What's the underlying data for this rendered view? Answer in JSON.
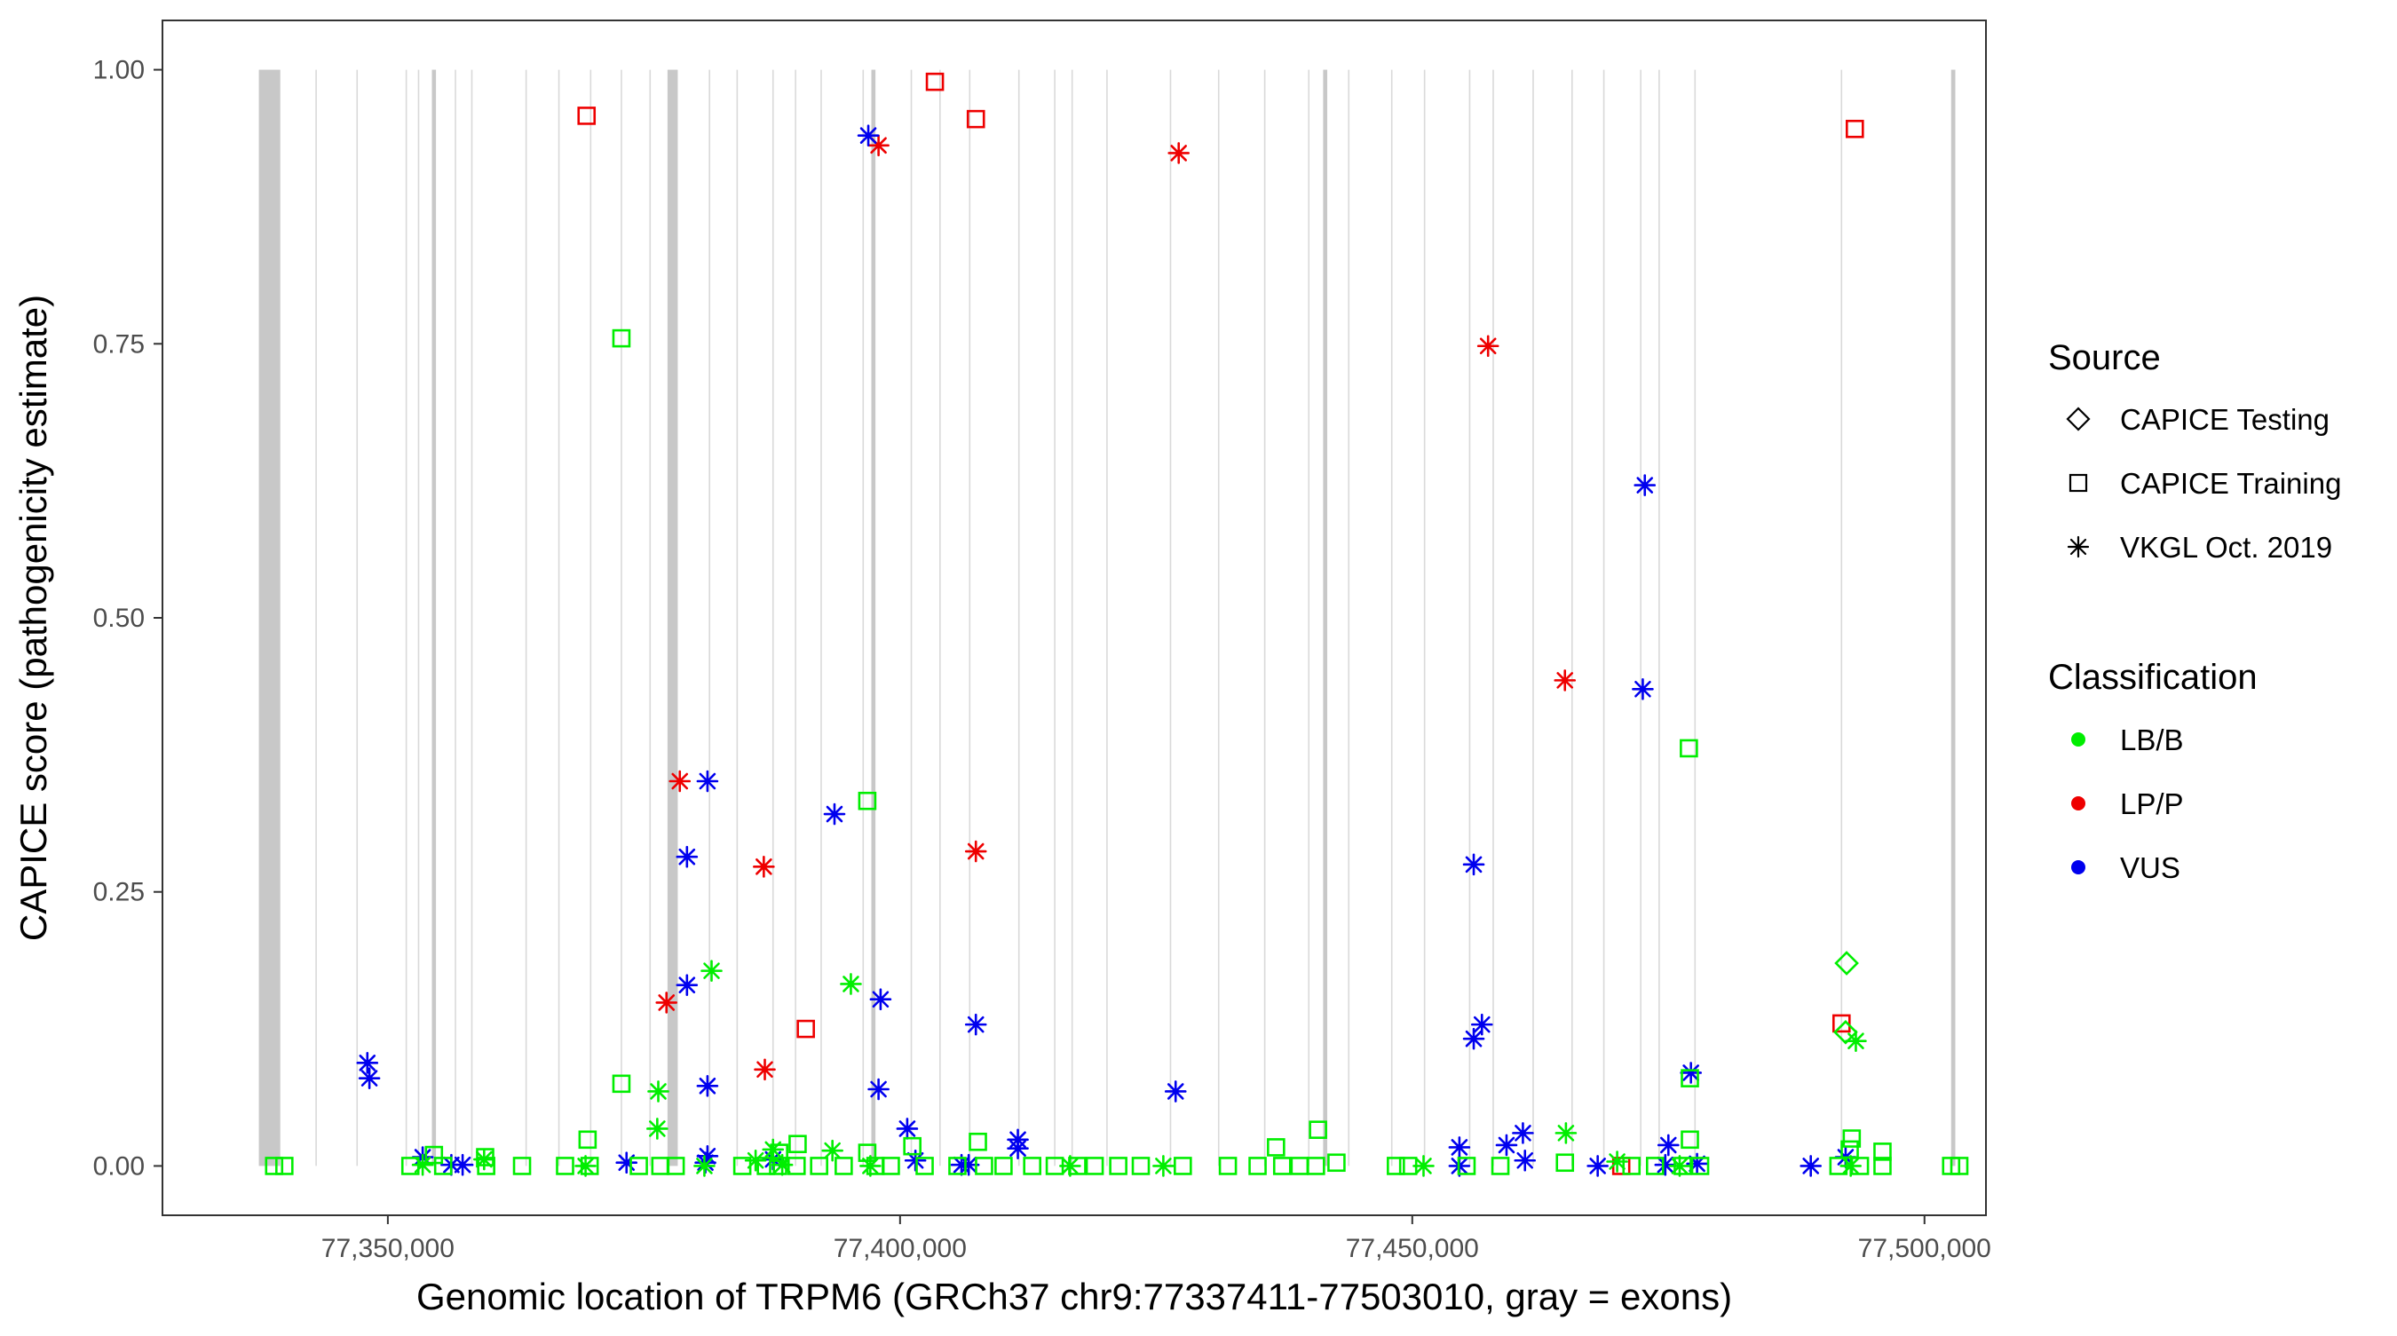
{
  "chart_data": {
    "type": "scatter",
    "title": "",
    "xlabel": "Genomic location of TRPM6 (GRCh37 chr9:77337411-77503010, gray = exons)",
    "ylabel": "CAPICE score (pathogenicity estimate)",
    "xlim": [
      77328000,
      77506000
    ],
    "ylim": [
      -0.045,
      1.045
    ],
    "x_ticks": [
      {
        "value": 77350000,
        "label": "77,350,000"
      },
      {
        "value": 77400000,
        "label": "77,400,000"
      },
      {
        "value": 77450000,
        "label": "77,450,000"
      },
      {
        "value": 77500000,
        "label": "77,500,000"
      }
    ],
    "y_ticks": [
      {
        "value": 0,
        "label": "0.00"
      },
      {
        "value": 0.25,
        "label": "0.25"
      },
      {
        "value": 0.5,
        "label": "0.50"
      },
      {
        "value": 0.75,
        "label": "0.75"
      },
      {
        "value": 1,
        "label": "1.00"
      }
    ],
    "grid": false,
    "legend_position": "right",
    "colors": {
      "LB/B": "#00ee00",
      "LP/P": "#ee0000",
      "VUS": "#0000ee",
      "exon": "#c8c8c8",
      "exon_line": "#d9d9d9"
    },
    "exons": [
      [
        77337411,
        77339500
      ],
      [
        77354300,
        77354700
      ],
      [
        77377300,
        77378300
      ],
      [
        77397200,
        77397600
      ],
      [
        77441300,
        77441700
      ],
      [
        77502600,
        77503010
      ]
    ],
    "exon_lines": [
      77343000,
      77347000,
      77351800,
      77353000,
      77356600,
      77358200,
      77363500,
      77366700,
      77369800,
      77372800,
      77375600,
      77381400,
      77384100,
      77387600,
      77389800,
      77392300,
      77396400,
      77401100,
      77403900,
      77406800,
      77411600,
      77415100,
      77416800,
      77420200,
      77426400,
      77431100,
      77435600,
      77439900,
      77443800,
      77448000,
      77451200,
      77455600,
      77457900,
      77461800,
      77465600,
      77468700,
      77472300,
      77474100,
      77477600,
      77491900
    ],
    "legend_source": {
      "title": "Source",
      "items": [
        {
          "label": "CAPICE Testing",
          "shape": "diamond"
        },
        {
          "label": "CAPICE Training",
          "shape": "square"
        },
        {
          "label": "VKGL Oct. 2019",
          "shape": "asterisk"
        }
      ]
    },
    "legend_classification": {
      "title": "Classification",
      "items": [
        {
          "label": "LB/B",
          "color": "#00ee00"
        },
        {
          "label": "LP/P",
          "color": "#ee0000"
        },
        {
          "label": "VUS",
          "color": "#0000ee"
        }
      ]
    },
    "series": [
      {
        "source": "CAPICE Training",
        "classification": "LP/P",
        "shape": "square",
        "points": [
          [
            77369400,
            0.958
          ],
          [
            77403400,
            0.989
          ],
          [
            77407400,
            0.955
          ],
          [
            77390800,
            0.125
          ],
          [
            77493200,
            0.946
          ],
          [
            77491900,
            0.13
          ],
          [
            77470400,
            0.0
          ]
        ]
      },
      {
        "source": "VKGL Oct. 2019",
        "classification": "LP/P",
        "shape": "asterisk",
        "points": [
          [
            77397900,
            0.931
          ],
          [
            77427200,
            0.924
          ],
          [
            77457400,
            0.748
          ],
          [
            77464900,
            0.443
          ],
          [
            77378500,
            0.351
          ],
          [
            77407400,
            0.287
          ],
          [
            77386700,
            0.273
          ],
          [
            77377200,
            0.149
          ],
          [
            77386800,
            0.088
          ]
        ]
      },
      {
        "source": "VKGL Oct. 2019",
        "classification": "VUS",
        "shape": "asterisk",
        "points": [
          [
            77396900,
            0.94
          ],
          [
            77472700,
            0.621
          ],
          [
            77472500,
            0.435
          ],
          [
            77381200,
            0.351
          ],
          [
            77393600,
            0.321
          ],
          [
            77379200,
            0.282
          ],
          [
            77456000,
            0.275
          ],
          [
            77407400,
            0.129
          ],
          [
            77456800,
            0.129
          ],
          [
            77456000,
            0.116
          ],
          [
            77379200,
            0.165
          ],
          [
            77398100,
            0.152
          ],
          [
            77348000,
            0.094
          ],
          [
            77348200,
            0.08
          ],
          [
            77381200,
            0.073
          ],
          [
            77426900,
            0.068
          ],
          [
            77397900,
            0.07
          ],
          [
            77477200,
            0.085
          ],
          [
            77400700,
            0.034
          ],
          [
            77411500,
            0.024
          ],
          [
            77411500,
            0.016
          ],
          [
            77454600,
            0.017
          ],
          [
            77460800,
            0.03
          ],
          [
            77459200,
            0.019
          ],
          [
            77461000,
            0.005
          ],
          [
            77475000,
            0.019
          ],
          [
            77381200,
            0.009
          ],
          [
            77381000,
            0.003
          ],
          [
            77373300,
            0.003
          ],
          [
            77353400,
            0.008
          ],
          [
            77356200,
            0.001
          ],
          [
            77357300,
            0.001
          ],
          [
            77387600,
            0.006
          ],
          [
            77406000,
            0.001
          ],
          [
            77406700,
            0.001
          ],
          [
            77401500,
            0.005
          ],
          [
            77454600,
            0.0
          ],
          [
            77468100,
            0.0
          ],
          [
            77474700,
            0.001
          ],
          [
            77477800,
            0.002
          ],
          [
            77488900,
            0.0
          ],
          [
            77492300,
            0.008
          ]
        ]
      },
      {
        "source": "VKGL Oct. 2019",
        "classification": "LB/B",
        "shape": "asterisk",
        "points": [
          [
            77381600,
            0.178
          ],
          [
            77395200,
            0.166
          ],
          [
            77376400,
            0.068
          ],
          [
            77376300,
            0.034
          ],
          [
            77387600,
            0.015
          ],
          [
            77393400,
            0.014
          ],
          [
            77465000,
            0.03
          ],
          [
            77493300,
            0.114
          ],
          [
            77353400,
            0.001
          ],
          [
            77359400,
            0.006
          ],
          [
            77369300,
            0.0
          ],
          [
            77380900,
            0.0
          ],
          [
            77385900,
            0.005
          ],
          [
            77388500,
            0.001
          ],
          [
            77397100,
            0.0
          ],
          [
            77416600,
            0.0
          ],
          [
            77425700,
            0.0
          ],
          [
            77451100,
            0.0
          ],
          [
            77470000,
            0.004
          ],
          [
            77476100,
            0.0
          ],
          [
            77492800,
            0.0
          ]
        ]
      },
      {
        "source": "CAPICE Training",
        "classification": "LB/B",
        "shape": "square",
        "points": [
          [
            77372800,
            0.755
          ],
          [
            77396800,
            0.333
          ],
          [
            77477000,
            0.381
          ],
          [
            77372800,
            0.075
          ],
          [
            77369500,
            0.024
          ],
          [
            77354500,
            0.01
          ],
          [
            77359500,
            0.008
          ],
          [
            77388200,
            0.012
          ],
          [
            77390000,
            0.02
          ],
          [
            77396800,
            0.012
          ],
          [
            77401200,
            0.018
          ],
          [
            77407600,
            0.022
          ],
          [
            77436700,
            0.017
          ],
          [
            77440800,
            0.033
          ],
          [
            77477100,
            0.024
          ],
          [
            77477100,
            0.08
          ],
          [
            77492900,
            0.025
          ],
          [
            77492700,
            0.015
          ],
          [
            77495900,
            0.013
          ],
          [
            77338900,
            0.0
          ],
          [
            77339900,
            0.0
          ],
          [
            77352200,
            0.0
          ],
          [
            77355400,
            0.0
          ],
          [
            77359600,
            0.0
          ],
          [
            77363100,
            0.0
          ],
          [
            77367300,
            0.0
          ],
          [
            77369700,
            0.0
          ],
          [
            77374500,
            0.0
          ],
          [
            77376600,
            0.0
          ],
          [
            77378100,
            0.0
          ],
          [
            77384600,
            0.0
          ],
          [
            77386900,
            0.0
          ],
          [
            77388100,
            0.0
          ],
          [
            77389900,
            0.0
          ],
          [
            77392100,
            0.0
          ],
          [
            77394500,
            0.0
          ],
          [
            77397600,
            0.0
          ],
          [
            77399100,
            0.0
          ],
          [
            77402400,
            0.0
          ],
          [
            77405600,
            0.0
          ],
          [
            77408200,
            0.0
          ],
          [
            77410100,
            0.0
          ],
          [
            77412900,
            0.0
          ],
          [
            77415100,
            0.0
          ],
          [
            77417300,
            0.0
          ],
          [
            77419000,
            0.0
          ],
          [
            77421300,
            0.0
          ],
          [
            77423500,
            0.0
          ],
          [
            77427600,
            0.0
          ],
          [
            77432000,
            0.0
          ],
          [
            77434900,
            0.0
          ],
          [
            77437300,
            0.0
          ],
          [
            77439000,
            0.0
          ],
          [
            77440600,
            0.0
          ],
          [
            77442600,
            0.003
          ],
          [
            77448400,
            0.0
          ],
          [
            77449600,
            0.0
          ],
          [
            77455300,
            0.0
          ],
          [
            77458600,
            0.0
          ],
          [
            77464900,
            0.003
          ],
          [
            77471400,
            0.0
          ],
          [
            77473700,
            0.0
          ],
          [
            77476400,
            0.0
          ],
          [
            77478100,
            0.0
          ],
          [
            77491600,
            0.0
          ],
          [
            77493700,
            0.0
          ],
          [
            77495900,
            0.0
          ],
          [
            77502600,
            0.0
          ],
          [
            77503400,
            0.0
          ]
        ]
      },
      {
        "source": "CAPICE Testing",
        "classification": "LB/B",
        "shape": "diamond",
        "points": [
          [
            77492400,
            0.185
          ],
          [
            77492300,
            0.122
          ]
        ]
      }
    ]
  }
}
